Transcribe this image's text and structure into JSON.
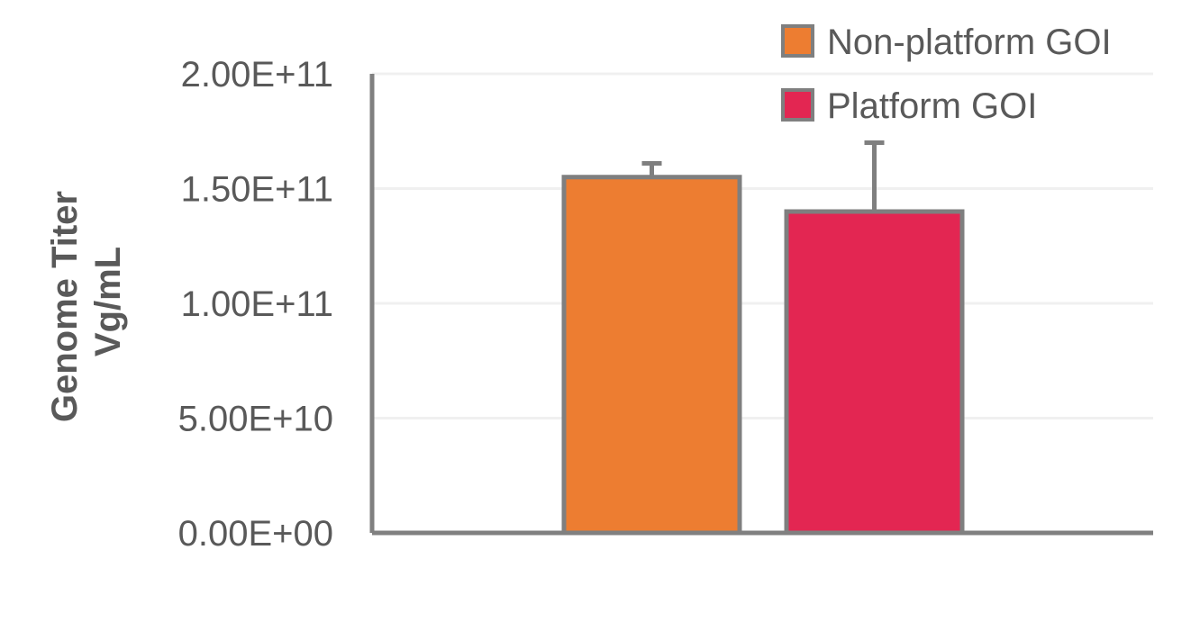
{
  "chart_data": {
    "type": "bar",
    "title": "",
    "xlabel": "",
    "ylabel_lines": [
      "Genome Titer",
      "Vg/mL"
    ],
    "ylim": [
      0,
      200000000000
    ],
    "yticks": [
      {
        "value": 0,
        "label": "0.00E+00"
      },
      {
        "value": 50000000000,
        "label": "5.00E+10"
      },
      {
        "value": 100000000000,
        "label": "1.00E+11"
      },
      {
        "value": 150000000000,
        "label": "1.50E+11"
      },
      {
        "value": 200000000000,
        "label": "2.00E+11"
      }
    ],
    "grid": true,
    "legend_position": "top-right",
    "series": [
      {
        "name": "Non-platform GOI",
        "value": 155000000000,
        "error": 6000000000,
        "color": "#ED7D31"
      },
      {
        "name": "Platform GOI",
        "value": 140000000000,
        "error": 30000000000,
        "color": "#E32652"
      }
    ],
    "colors": {
      "axis": "#808080",
      "grid": "#F0F0F0",
      "bar_border": "#7F7F7F",
      "text": "#595959"
    }
  }
}
